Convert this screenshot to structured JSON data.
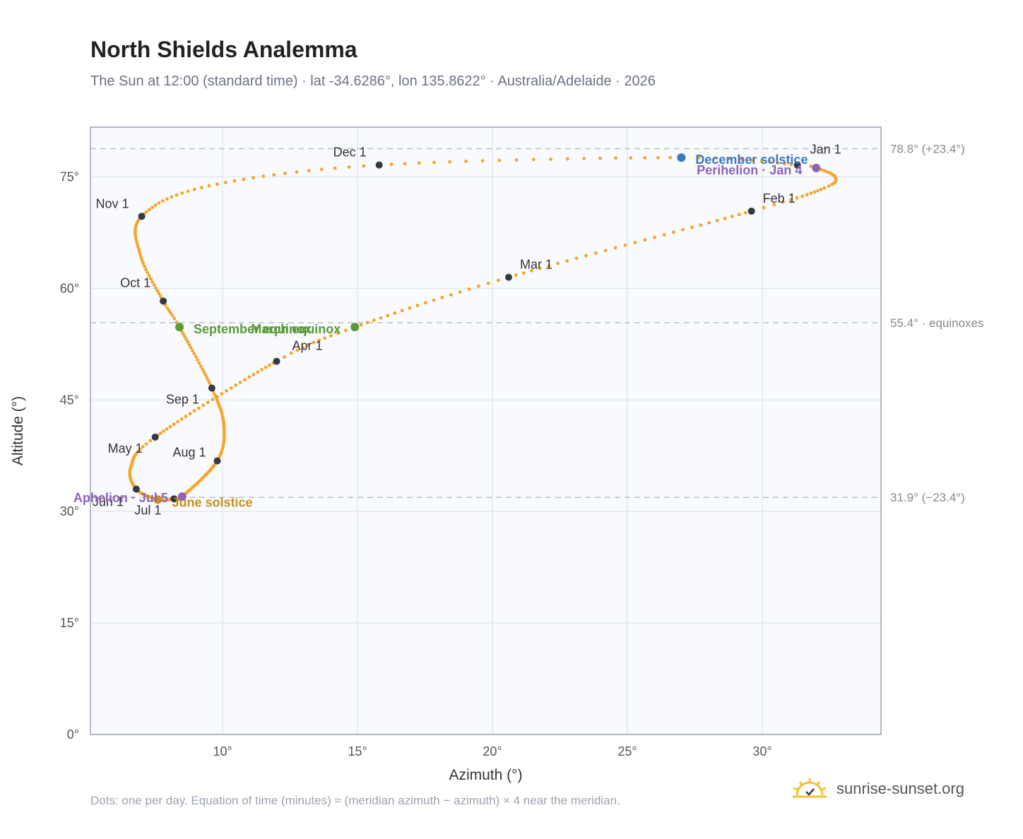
{
  "header": {
    "title": "North Shields Analemma",
    "subtitle": "The Sun at 12:00 (standard time) · lat -34.6286°, lon 135.8622° · Australia/Adelaide · 2026"
  },
  "footer": {
    "note": "Dots: one per day. Equation of time (minutes) ≈ (meridian azimuth − azimuth) × 4 near the meridian.",
    "brand": "sunrise-sunset.org",
    "brand_icon": "sun-icon"
  },
  "colors": {
    "path": "#f5a52a",
    "month_marker": "#333a44",
    "equinox": "#5a9a3a",
    "december_solstice": "#3b78c0",
    "june_solstice": "#c8901e",
    "apsis": "#8e63b8",
    "plot_bg": "#f8fafd"
  },
  "chart_data": {
    "type": "scatter",
    "xlabel": "Azimuth (°)",
    "ylabel": "Altitude (°)",
    "xlim": [
      5.1,
      34.4
    ],
    "ylim": [
      0,
      81.7
    ],
    "xticks": [
      10,
      15,
      20,
      25,
      30
    ],
    "xtick_labels": [
      "10°",
      "15°",
      "20°",
      "25°",
      "30°"
    ],
    "yticks": [
      0,
      15,
      30,
      45,
      60,
      75
    ],
    "ytick_labels": [
      "0°",
      "15°",
      "30°",
      "45°",
      "60°",
      "75°"
    ],
    "grid": true,
    "analemma_anchors": [
      {
        "day": 1,
        "az": 31.3,
        "alt": 76.6
      },
      {
        "day": 4,
        "az": 32.0,
        "alt": 76.2
      },
      {
        "day": 12,
        "az": 32.7,
        "alt": 75.0
      },
      {
        "day": 20,
        "az": 32.3,
        "alt": 73.5
      },
      {
        "day": 32,
        "az": 29.6,
        "alt": 70.4
      },
      {
        "day": 60,
        "az": 20.6,
        "alt": 61.5
      },
      {
        "day": 79,
        "az": 14.9,
        "alt": 54.8
      },
      {
        "day": 91,
        "az": 12.0,
        "alt": 50.2
      },
      {
        "day": 121,
        "az": 7.5,
        "alt": 40.0
      },
      {
        "day": 135,
        "az": 6.6,
        "alt": 36.0
      },
      {
        "day": 152,
        "az": 6.8,
        "alt": 33.0
      },
      {
        "day": 172,
        "az": 7.6,
        "alt": 31.6
      },
      {
        "day": 182,
        "az": 8.2,
        "alt": 31.7
      },
      {
        "day": 186,
        "az": 8.5,
        "alt": 32.0
      },
      {
        "day": 213,
        "az": 9.8,
        "alt": 36.8
      },
      {
        "day": 228,
        "az": 10.05,
        "alt": 41.5
      },
      {
        "day": 244,
        "az": 9.6,
        "alt": 46.6
      },
      {
        "day": 266,
        "az": 8.4,
        "alt": 54.8
      },
      {
        "day": 274,
        "az": 7.8,
        "alt": 58.3
      },
      {
        "day": 290,
        "az": 6.95,
        "alt": 64.5
      },
      {
        "day": 305,
        "az": 7.0,
        "alt": 69.7
      },
      {
        "day": 320,
        "az": 9.5,
        "alt": 73.8
      },
      {
        "day": 335,
        "az": 15.8,
        "alt": 76.6
      },
      {
        "day": 355,
        "az": 27.0,
        "alt": 77.6
      },
      {
        "day": 366,
        "az": 31.3,
        "alt": 76.6
      }
    ],
    "reference_lines": [
      {
        "alt": 78.8,
        "label": "78.8° (+23.4°)"
      },
      {
        "alt": 55.4,
        "label": "55.4° · equinoxes"
      },
      {
        "alt": 31.9,
        "label": "31.9° (−23.4°)"
      }
    ],
    "month_markers": [
      {
        "label": "Jan 1",
        "az": 31.3,
        "alt": 76.6
      },
      {
        "label": "Feb 1",
        "az": 29.6,
        "alt": 70.4
      },
      {
        "label": "Mar 1",
        "az": 20.6,
        "alt": 61.5
      },
      {
        "label": "Apr 1",
        "az": 12.0,
        "alt": 50.2
      },
      {
        "label": "May 1",
        "az": 7.5,
        "alt": 40.0
      },
      {
        "label": "Jun 1",
        "az": 6.8,
        "alt": 33.0
      },
      {
        "label": "Jul 1",
        "az": 8.2,
        "alt": 31.7
      },
      {
        "label": "Aug 1",
        "az": 9.8,
        "alt": 36.8
      },
      {
        "label": "Sep 1",
        "az": 9.6,
        "alt": 46.6
      },
      {
        "label": "Oct 1",
        "az": 7.8,
        "alt": 58.3
      },
      {
        "label": "Nov 1",
        "az": 7.0,
        "alt": 69.7
      },
      {
        "label": "Dec 1",
        "az": 15.8,
        "alt": 76.6
      }
    ],
    "events": [
      {
        "label": "December solstice",
        "az": 27.0,
        "alt": 77.6,
        "kind": "december_solstice"
      },
      {
        "label": "Perihelion · Jan 4",
        "az": 32.0,
        "alt": 76.2,
        "kind": "apsis"
      },
      {
        "label": "March equinox",
        "az": 14.9,
        "alt": 54.8,
        "kind": "equinox"
      },
      {
        "label": "September equinox",
        "az": 8.4,
        "alt": 54.8,
        "kind": "equinox"
      },
      {
        "label": "June solstice",
        "az": 7.6,
        "alt": 31.6,
        "kind": "june_solstice"
      },
      {
        "label": "Aphelion · Jul 5",
        "az": 8.5,
        "alt": 32.0,
        "kind": "apsis"
      }
    ]
  }
}
